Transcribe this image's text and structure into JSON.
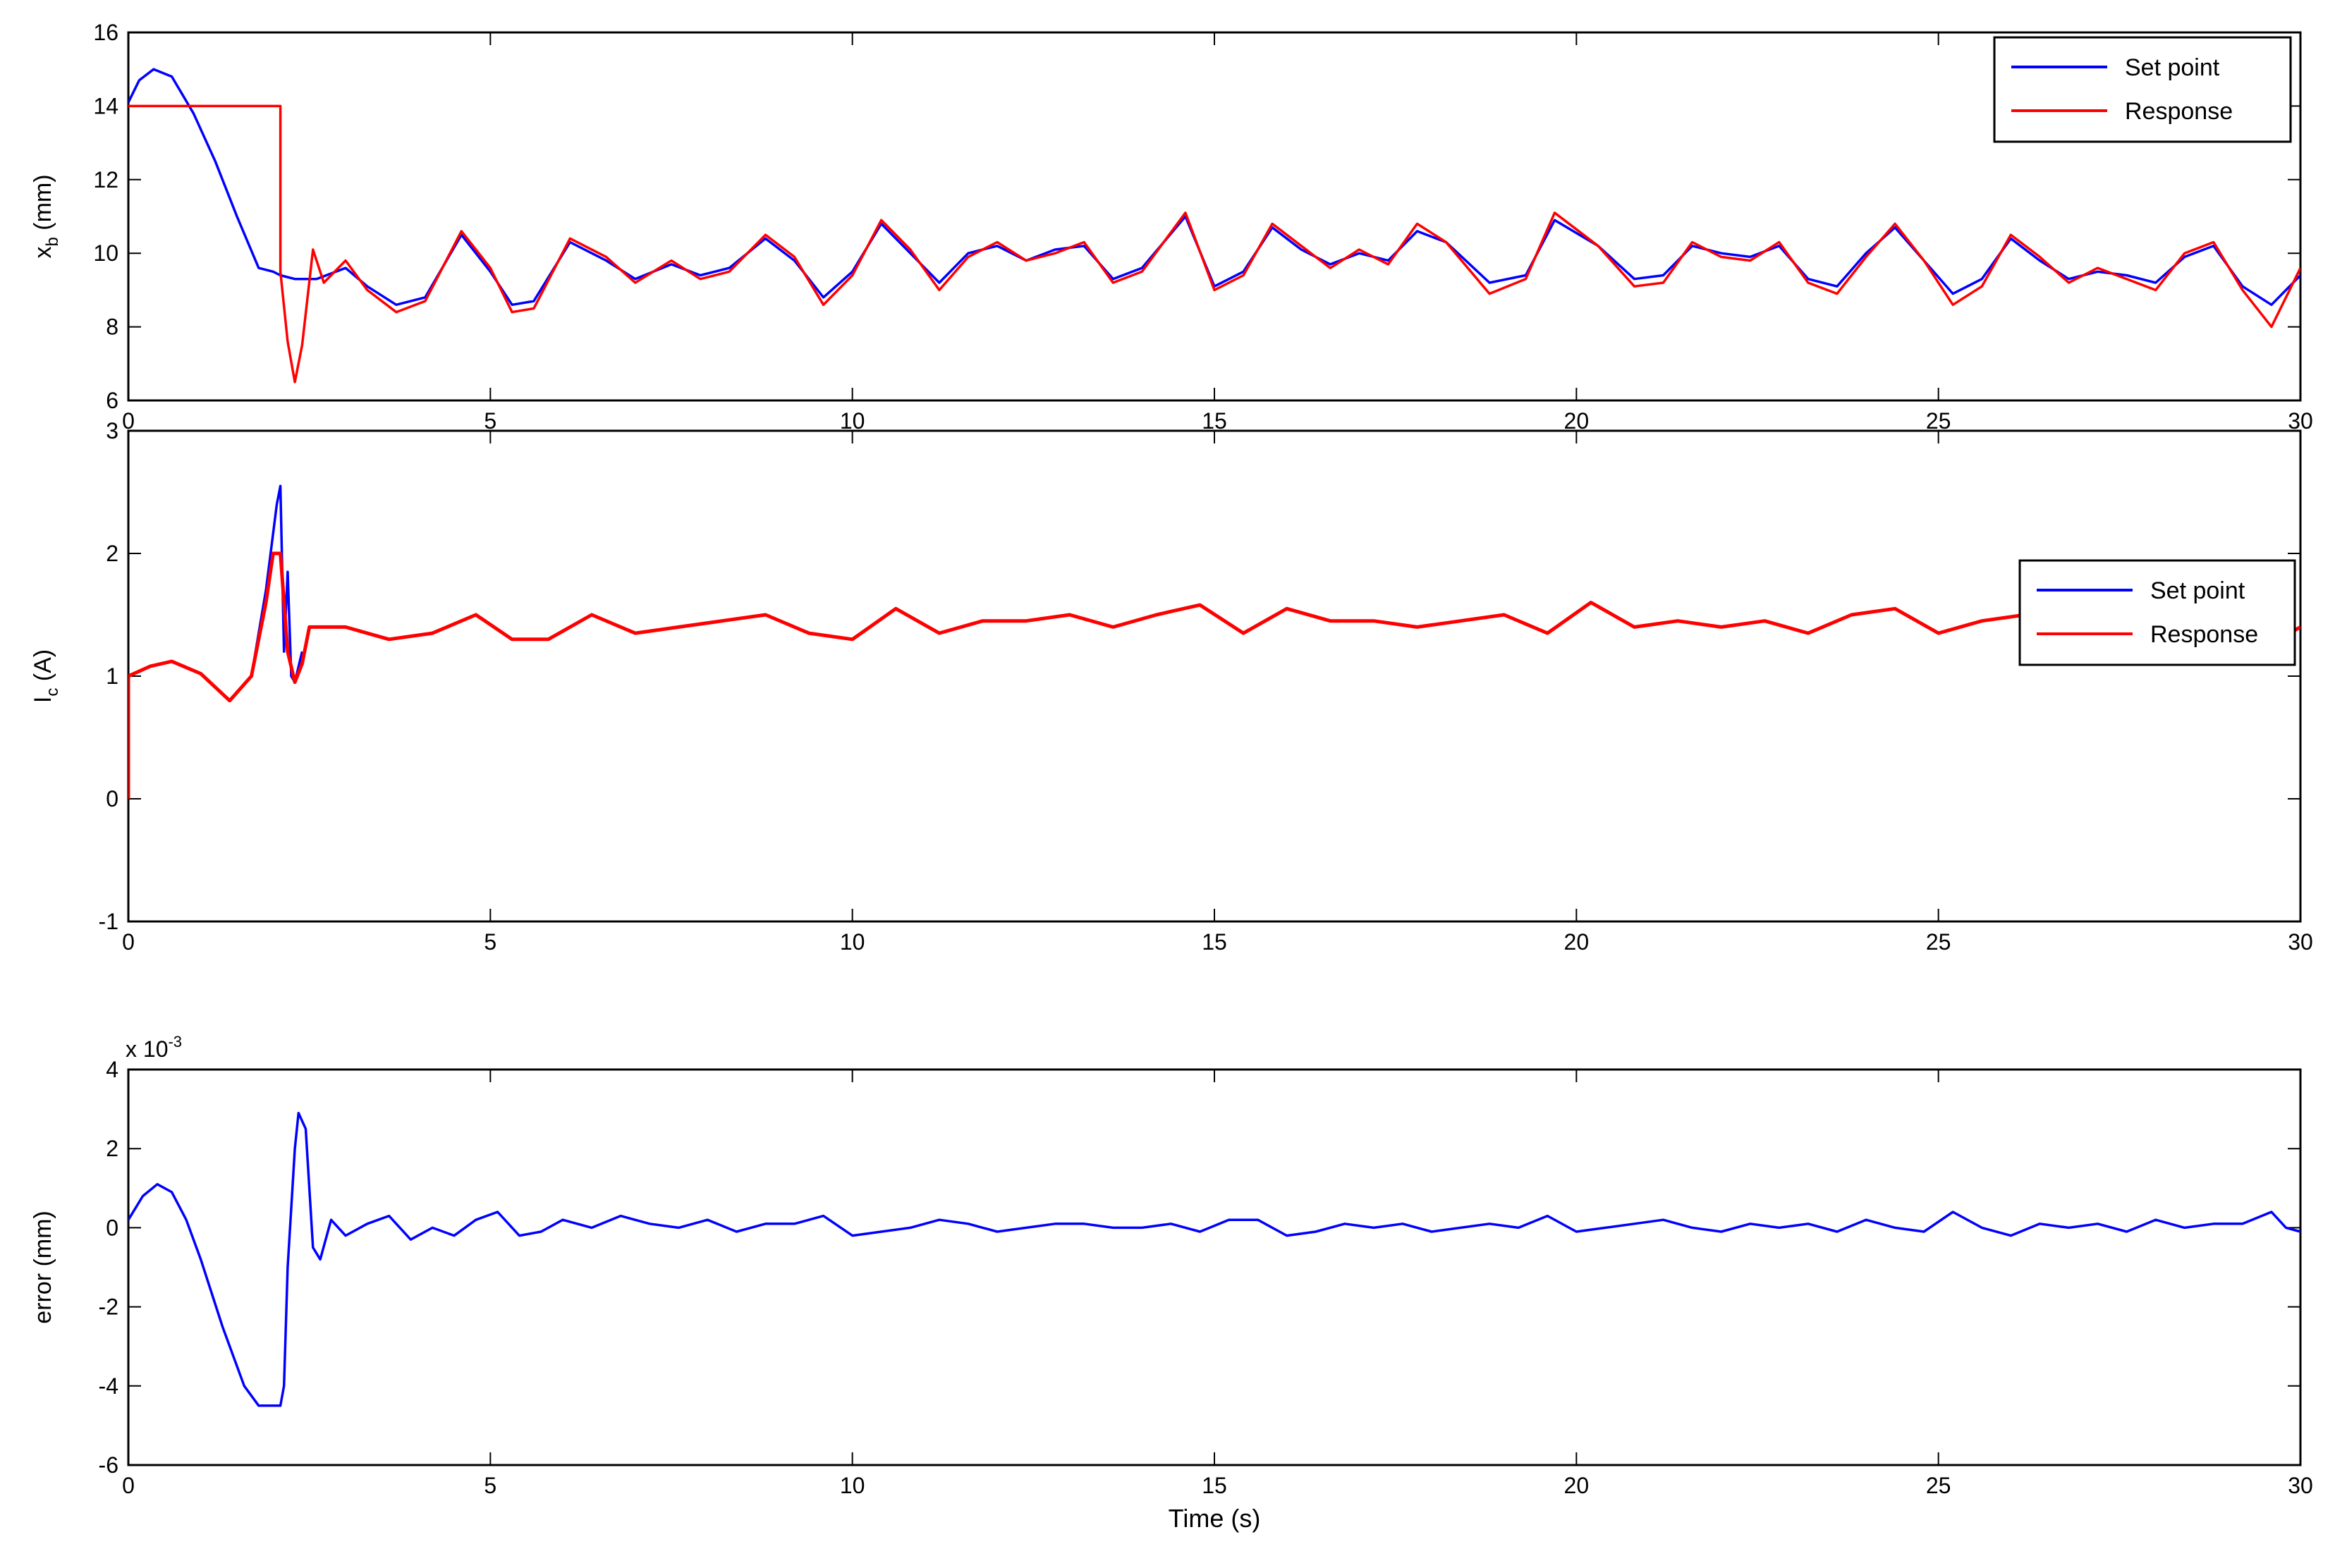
{
  "chart_data": [
    {
      "type": "line",
      "ylabel": "x_b (mm)",
      "ylabel_main": "x",
      "ylabel_sub": "b",
      "ylabel_rest": " (mm)",
      "xlim": [
        0,
        30
      ],
      "ylim": [
        6,
        16
      ],
      "xticks": [
        "0",
        "5",
        "10",
        "15",
        "20",
        "25",
        "30"
      ],
      "yticks": [
        "6",
        "8",
        "10",
        "12",
        "14",
        "16"
      ],
      "legend_position": "top-right",
      "series": [
        {
          "name": "Set point",
          "color": "#0000ff",
          "x": [
            0,
            0.15,
            0.35,
            0.6,
            0.9,
            1.2,
            1.5,
            1.8,
            2.0,
            2.1,
            2.3,
            2.6,
            3.0,
            3.3,
            3.7,
            4.1,
            4.6,
            5.0,
            5.3,
            5.6,
            6.1,
            6.6,
            7.0,
            7.5,
            7.9,
            8.3,
            8.8,
            9.2,
            9.6,
            10.0,
            10.4,
            10.8,
            11.2,
            11.6,
            12.0,
            12.4,
            12.8,
            13.2,
            13.6,
            14.0,
            14.6,
            15.0,
            15.4,
            15.8,
            16.2,
            16.6,
            17.0,
            17.4,
            17.8,
            18.2,
            18.8,
            19.3,
            19.7,
            20.3,
            20.8,
            21.2,
            21.6,
            22.0,
            22.4,
            22.8,
            23.2,
            23.6,
            24.0,
            24.4,
            24.8,
            25.2,
            25.6,
            26.0,
            26.4,
            26.8,
            27.2,
            27.6,
            28.0,
            28.4,
            28.8,
            29.2,
            29.6,
            30.0
          ],
          "y": [
            14.1,
            14.7,
            15.0,
            14.8,
            13.8,
            12.5,
            11.0,
            9.6,
            9.5,
            9.4,
            9.3,
            9.3,
            9.6,
            9.1,
            8.6,
            8.8,
            10.5,
            9.5,
            8.6,
            8.7,
            10.3,
            9.8,
            9.3,
            9.7,
            9.4,
            9.6,
            10.4,
            9.8,
            8.8,
            9.5,
            10.8,
            10.0,
            9.2,
            10.0,
            10.2,
            9.8,
            10.1,
            10.2,
            9.3,
            9.6,
            11.0,
            9.1,
            9.5,
            10.7,
            10.1,
            9.7,
            10.0,
            9.8,
            10.6,
            10.3,
            9.2,
            9.4,
            10.9,
            10.2,
            9.3,
            9.4,
            10.2,
            10.0,
            9.9,
            10.2,
            9.3,
            9.1,
            10.0,
            10.7,
            9.8,
            8.9,
            9.3,
            10.4,
            9.8,
            9.3,
            9.5,
            9.4,
            9.2,
            9.9,
            10.2,
            9.1,
            8.6,
            9.4
          ]
        },
        {
          "name": "Response",
          "color": "#ff0000",
          "x": [
            0,
            2.1,
            2.1,
            2.2,
            2.3,
            2.4,
            2.55,
            2.7,
            3.0,
            3.3,
            3.7,
            4.1,
            4.6,
            5.0,
            5.3,
            5.6,
            6.1,
            6.6,
            7.0,
            7.5,
            7.9,
            8.3,
            8.8,
            9.2,
            9.6,
            10.0,
            10.4,
            10.8,
            11.2,
            11.6,
            12.0,
            12.4,
            12.8,
            13.2,
            13.6,
            14.0,
            14.6,
            15.0,
            15.4,
            15.8,
            16.2,
            16.6,
            17.0,
            17.4,
            17.8,
            18.2,
            18.8,
            19.3,
            19.7,
            20.3,
            20.8,
            21.2,
            21.6,
            22.0,
            22.4,
            22.8,
            23.2,
            23.6,
            24.0,
            24.4,
            24.8,
            25.2,
            25.6,
            26.0,
            26.4,
            26.8,
            27.2,
            27.6,
            28.0,
            28.4,
            28.8,
            29.2,
            29.6,
            30.0
          ],
          "y": [
            14.0,
            14.0,
            9.5,
            7.6,
            6.5,
            7.5,
            10.1,
            9.2,
            9.8,
            9.0,
            8.4,
            8.7,
            10.6,
            9.6,
            8.4,
            8.5,
            10.4,
            9.9,
            9.2,
            9.8,
            9.3,
            9.5,
            10.5,
            9.9,
            8.6,
            9.4,
            10.9,
            10.1,
            9.0,
            9.9,
            10.3,
            9.8,
            10.0,
            10.3,
            9.2,
            9.5,
            11.1,
            9.0,
            9.4,
            10.8,
            10.2,
            9.6,
            10.1,
            9.7,
            10.8,
            10.3,
            8.9,
            9.3,
            11.1,
            10.2,
            9.1,
            9.2,
            10.3,
            9.9,
            9.8,
            10.3,
            9.2,
            8.9,
            9.9,
            10.8,
            9.8,
            8.6,
            9.1,
            10.5,
            9.9,
            9.2,
            9.6,
            9.3,
            9.0,
            10.0,
            10.3,
            9.0,
            8.0,
            9.6
          ]
        }
      ]
    },
    {
      "type": "line",
      "ylabel": "I_c (A)",
      "ylabel_main": "I",
      "ylabel_sub": "c",
      "ylabel_rest": " (A)",
      "xlim": [
        0,
        30
      ],
      "ylim": [
        -1,
        3
      ],
      "xticks": [
        "0",
        "5",
        "10",
        "15",
        "20",
        "25",
        "30"
      ],
      "yticks": [
        "-1",
        "0",
        "1",
        "2",
        "3"
      ],
      "legend_position": "top-right",
      "series": [
        {
          "name": "Set point",
          "color": "#0000ff",
          "x": [
            0,
            0.3,
            0.6,
            1.0,
            1.4,
            1.7,
            1.9,
            2.05,
            2.1,
            2.15,
            2.2,
            2.25,
            2.3,
            2.4
          ],
          "y": [
            1.0,
            1.08,
            1.12,
            1.02,
            0.8,
            1.0,
            1.7,
            2.4,
            2.55,
            1.2,
            1.85,
            1.0,
            0.95,
            1.2
          ]
        },
        {
          "name": "Response",
          "color": "#ff0000",
          "x": [
            0,
            0.0,
            0.3,
            0.6,
            1.0,
            1.4,
            1.7,
            1.9,
            2.0,
            2.1,
            2.2,
            2.3,
            2.4,
            2.5,
            3.0,
            3.6,
            4.2,
            4.8,
            5.3,
            5.8,
            6.4,
            7.0,
            7.6,
            8.2,
            8.8,
            9.4,
            10.0,
            10.6,
            11.2,
            11.8,
            12.4,
            13.0,
            13.6,
            14.2,
            14.8,
            15.4,
            16.0,
            16.6,
            17.2,
            17.8,
            18.4,
            19.0,
            19.6,
            20.2,
            20.8,
            21.4,
            22.0,
            22.6,
            23.2,
            23.8,
            24.4,
            25.0,
            25.6,
            26.2,
            26.8,
            27.4,
            28.0,
            28.6,
            29.2,
            29.7,
            30.0
          ],
          "y": [
            0.0,
            1.0,
            1.08,
            1.12,
            1.02,
            0.8,
            1.0,
            1.6,
            2.0,
            2.0,
            1.2,
            0.95,
            1.1,
            1.4,
            1.4,
            1.3,
            1.35,
            1.5,
            1.3,
            1.3,
            1.5,
            1.35,
            1.4,
            1.45,
            1.5,
            1.35,
            1.3,
            1.55,
            1.35,
            1.45,
            1.45,
            1.5,
            1.4,
            1.5,
            1.58,
            1.35,
            1.55,
            1.45,
            1.45,
            1.4,
            1.45,
            1.5,
            1.35,
            1.6,
            1.4,
            1.45,
            1.4,
            1.45,
            1.35,
            1.5,
            1.55,
            1.35,
            1.45,
            1.5,
            1.4,
            1.45,
            1.35,
            1.5,
            1.4,
            1.3,
            1.4
          ]
        }
      ]
    },
    {
      "type": "line",
      "ylabel": "error (mm)",
      "exponent_base": "x 10",
      "exponent_power": "-3",
      "xlabel": "Time (s)",
      "xlim": [
        0,
        30
      ],
      "ylim": [
        -6,
        4
      ],
      "xticks": [
        "0",
        "5",
        "10",
        "15",
        "20",
        "25",
        "30"
      ],
      "yticks": [
        "-6",
        "-4",
        "-2",
        "0",
        "2",
        "4"
      ],
      "series": [
        {
          "color": "#0000ff",
          "x": [
            0,
            0.2,
            0.4,
            0.6,
            0.8,
            1.0,
            1.3,
            1.6,
            1.8,
            1.9,
            2.0,
            2.1,
            2.15,
            2.2,
            2.3,
            2.35,
            2.45,
            2.55,
            2.65,
            2.8,
            3.0,
            3.3,
            3.6,
            3.9,
            4.2,
            4.5,
            4.8,
            5.1,
            5.4,
            5.7,
            6.0,
            6.4,
            6.8,
            7.2,
            7.6,
            8.0,
            8.4,
            8.8,
            9.2,
            9.6,
            10.0,
            10.4,
            10.8,
            11.2,
            11.6,
            12.0,
            12.4,
            12.8,
            13.2,
            13.6,
            14.0,
            14.4,
            14.8,
            15.2,
            15.6,
            16.0,
            16.4,
            16.8,
            17.2,
            17.6,
            18.0,
            18.4,
            18.8,
            19.2,
            19.6,
            20.0,
            20.4,
            20.8,
            21.2,
            21.6,
            22.0,
            22.4,
            22.8,
            23.2,
            23.6,
            24.0,
            24.4,
            24.8,
            25.2,
            25.6,
            26.0,
            26.4,
            26.8,
            27.2,
            27.6,
            28.0,
            28.4,
            28.8,
            29.2,
            29.6,
            29.8,
            30.0
          ],
          "y": [
            0.2,
            0.8,
            1.1,
            0.9,
            0.2,
            -0.8,
            -2.5,
            -4.0,
            -4.5,
            -4.5,
            -4.5,
            -4.5,
            -4.0,
            -1.0,
            2.0,
            2.9,
            2.5,
            -0.5,
            -0.8,
            0.2,
            -0.2,
            0.1,
            0.3,
            -0.3,
            0.0,
            -0.2,
            0.2,
            0.4,
            -0.2,
            -0.1,
            0.2,
            0.0,
            0.3,
            0.1,
            0.0,
            0.2,
            -0.1,
            0.1,
            0.1,
            0.3,
            -0.2,
            -0.1,
            0.0,
            0.2,
            0.1,
            -0.1,
            0.0,
            0.1,
            0.1,
            0.0,
            0.0,
            0.1,
            -0.1,
            0.2,
            0.2,
            -0.2,
            -0.1,
            0.1,
            0.0,
            0.1,
            -0.1,
            0.0,
            0.1,
            0.0,
            0.3,
            -0.1,
            0.0,
            0.1,
            0.2,
            0.0,
            -0.1,
            0.1,
            0.0,
            0.1,
            -0.1,
            0.2,
            0.0,
            -0.1,
            0.4,
            0.0,
            -0.2,
            0.1,
            0.0,
            0.1,
            -0.1,
            0.2,
            0.0,
            0.1,
            0.1,
            0.4,
            0.0,
            -0.1
          ]
        }
      ]
    }
  ]
}
